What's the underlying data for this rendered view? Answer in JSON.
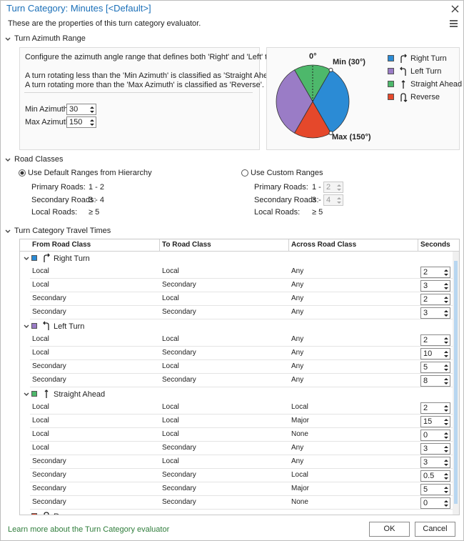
{
  "window": {
    "title": "Turn Category: Minutes [<Default>]",
    "description": "These are the properties of this turn category evaluator."
  },
  "azimuth": {
    "heading": "Turn Azimuth Range",
    "intro": "Configure the azimuth angle range that defines both 'Right' and 'Left' turns.",
    "rule_less": "A turn rotating less than the 'Min Azimuth' is classified as 'Straight Ahead'.",
    "rule_more": "A turn rotating more than the 'Max Azimuth' is classified as 'Reverse'.",
    "min_label": "Min Azimuth:",
    "min_value": 30,
    "max_label": "Max Azimuth:",
    "max_value": 150,
    "diagram": {
      "zero_label": "0°",
      "min_label": "Min (30°)",
      "max_label": "Max (150°)"
    },
    "legend": [
      {
        "name": "Right Turn",
        "color": "#2b8bd5"
      },
      {
        "name": "Left Turn",
        "color": "#9a7cc6"
      },
      {
        "name": "Straight Ahead",
        "color": "#4db86b"
      },
      {
        "name": "Reverse",
        "color": "#e5482b"
      }
    ]
  },
  "road_classes": {
    "heading": "Road Classes",
    "default": {
      "label": "Use Default Ranges from Hierarchy",
      "rows": [
        [
          "Primary Roads:",
          "1 - 2"
        ],
        [
          "Secondary Roads:",
          "3 - 4"
        ],
        [
          "Local Roads:",
          "≥ 5"
        ]
      ]
    },
    "custom": {
      "label": "Use Custom Ranges",
      "rows": [
        [
          "Primary Roads:",
          "1 -",
          2
        ],
        [
          "Secondary Roads:",
          "3 -",
          4
        ],
        [
          "Local Roads:",
          "≥ 5"
        ]
      ]
    }
  },
  "travel_times": {
    "heading": "Turn Category Travel Times",
    "columns": [
      "From Road Class",
      "To Road Class",
      "Across Road Class",
      "Seconds"
    ],
    "groups": [
      {
        "name": "Right Turn",
        "rows": [
          [
            "Local",
            "Local",
            "Any",
            2
          ],
          [
            "Local",
            "Secondary",
            "Any",
            3
          ],
          [
            "Secondary",
            "Local",
            "Any",
            2
          ],
          [
            "Secondary",
            "Secondary",
            "Any",
            3
          ]
        ]
      },
      {
        "name": "Left Turn",
        "rows": [
          [
            "Local",
            "Local",
            "Any",
            2
          ],
          [
            "Local",
            "Secondary",
            "Any",
            10
          ],
          [
            "Secondary",
            "Local",
            "Any",
            5
          ],
          [
            "Secondary",
            "Secondary",
            "Any",
            8
          ]
        ]
      },
      {
        "name": "Straight Ahead",
        "rows": [
          [
            "Local",
            "Local",
            "Local",
            2
          ],
          [
            "Local",
            "Local",
            "Major",
            15
          ],
          [
            "Local",
            "Local",
            "None",
            0
          ],
          [
            "Local",
            "Secondary",
            "Any",
            3
          ],
          [
            "Secondary",
            "Local",
            "Any",
            3
          ],
          [
            "Secondary",
            "Secondary",
            "Local",
            0.5
          ],
          [
            "Secondary",
            "Secondary",
            "Major",
            5
          ],
          [
            "Secondary",
            "Secondary",
            "None",
            0
          ]
        ]
      },
      {
        "name": "Reverse",
        "rows": []
      }
    ]
  },
  "footer": {
    "link": "Learn more about the Turn Category evaluator",
    "ok": "OK",
    "cancel": "Cancel"
  }
}
